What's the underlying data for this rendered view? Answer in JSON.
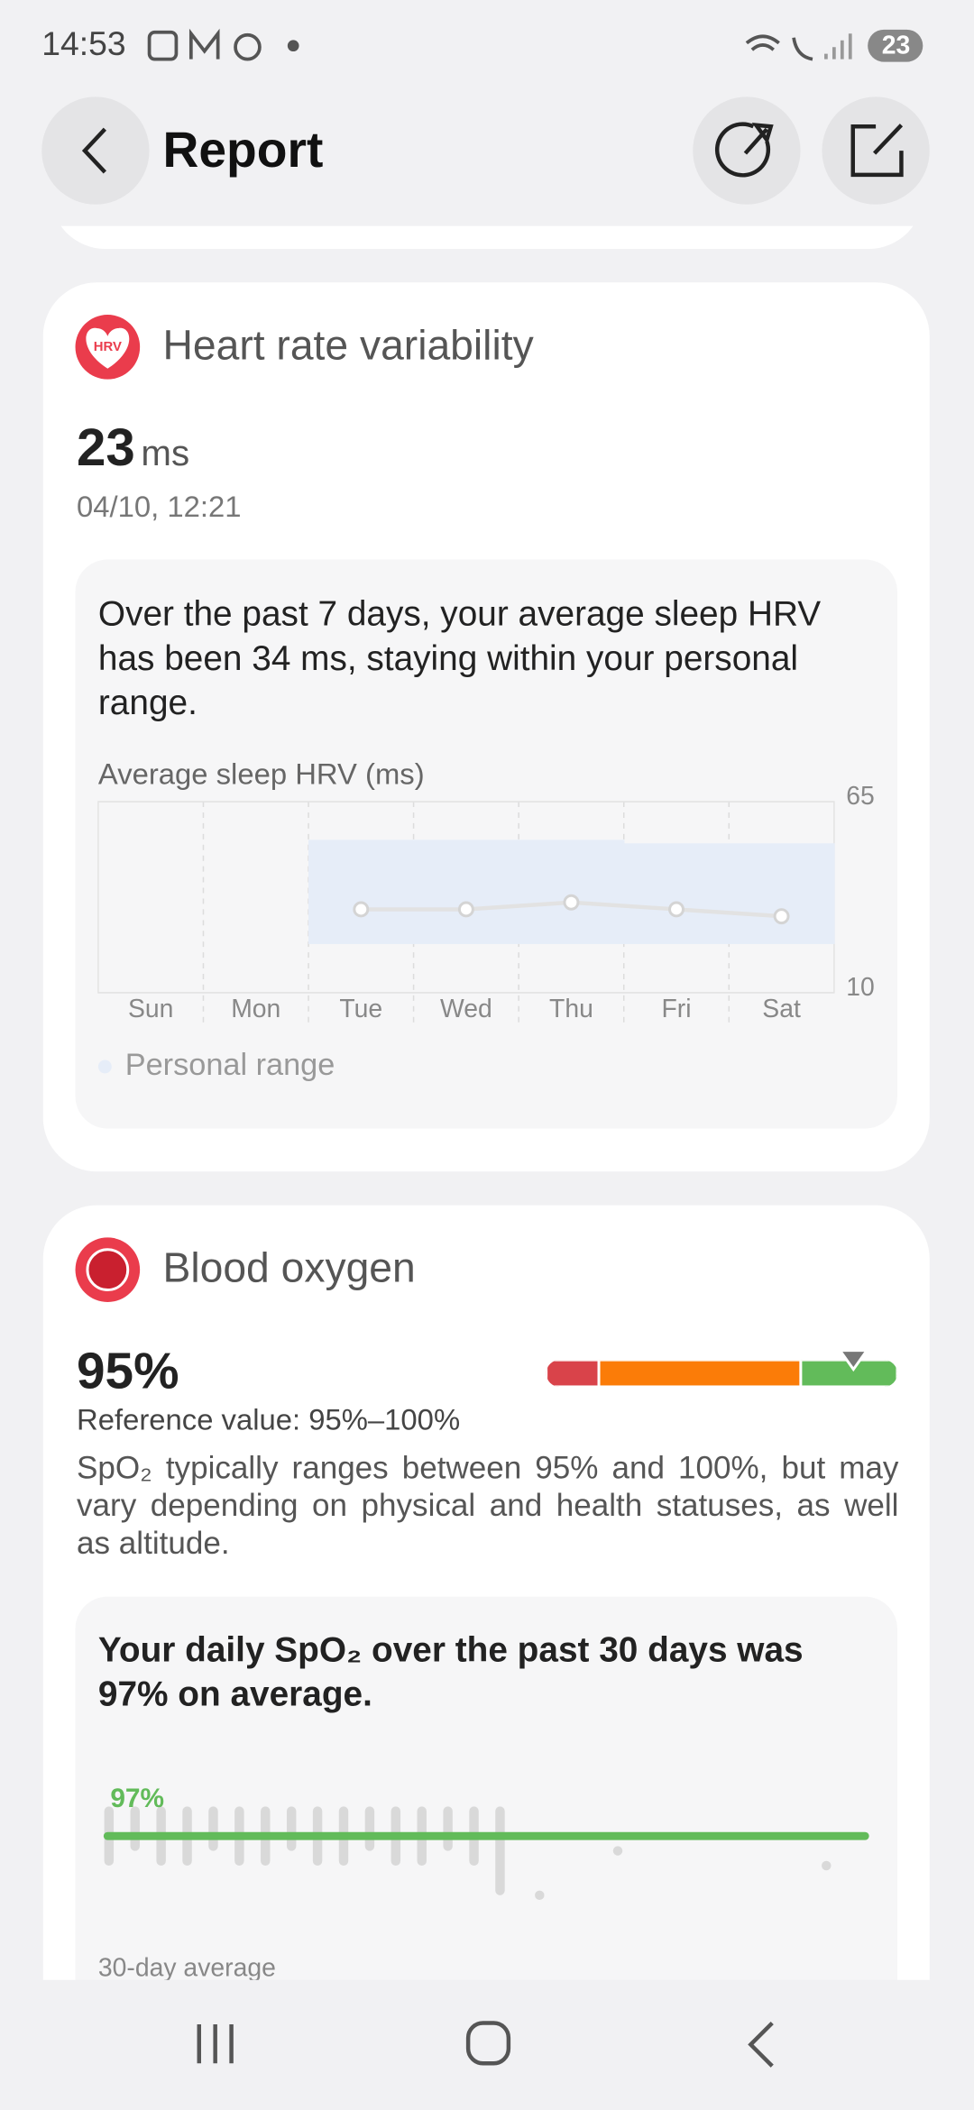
{
  "status_bar": {
    "time": "14:53",
    "battery": "23"
  },
  "header": {
    "title": "Report"
  },
  "hrv": {
    "title": "Heart rate variability",
    "icon_label": "HRV",
    "value": 23,
    "unit": "ms",
    "timestamp": "04/10, 12:21",
    "summary": "Over the past 7 days, your average sleep HRV has been 34 ms, staying within your personal range.",
    "chart": {
      "type": "line",
      "title": "Average sleep HRV (ms)",
      "categories": [
        "Sun",
        "Mon",
        "Tue",
        "Wed",
        "Thu",
        "Fri",
        "Sat"
      ],
      "values": [
        null,
        null,
        34,
        34,
        36,
        34,
        32
      ],
      "range_low": [
        null,
        null,
        24,
        24,
        24,
        24,
        24
      ],
      "range_high": [
        null,
        null,
        54,
        54,
        54,
        53,
        53
      ],
      "ylim": [
        10,
        65
      ],
      "yticks": [
        10,
        65
      ],
      "legend": "Personal range",
      "color": "#e2e2e2",
      "range_color": "#e6edf8"
    }
  },
  "blood_oxygen": {
    "title": "Blood oxygen",
    "value": 95,
    "value_label": "95%",
    "reference": "Reference value: 95%–100%",
    "description": "SpO₂ typically ranges between 95% and 100%, but may vary depending on physical and health statuses, as well as altitude.",
    "gauge": {
      "lim": [
        60,
        100
      ],
      "bounds": [
        66,
        89
      ],
      "colors": [
        "#d9434a",
        "#fb7c08",
        "#62bb5a"
      ]
    },
    "summary": "Your daily SpO₂ over the past 30 days was 97% on average.",
    "chart": {
      "type": "range_bar",
      "average": 97,
      "average_label": "97%",
      "ylim": [
        90,
        100
      ],
      "footer": "30-day average",
      "color": "#d9d9d9",
      "average_color": "#62bb5a",
      "lows": [
        95,
        96,
        95,
        95,
        96,
        95,
        95,
        96,
        95,
        95,
        96,
        95,
        95,
        96,
        95,
        93,
        93,
        null,
        null,
        96,
        null,
        null,
        null,
        null,
        null,
        null,
        null,
        95,
        null,
        null
      ],
      "highs": [
        99,
        99,
        99,
        99,
        99,
        99,
        99,
        99,
        99,
        99,
        99,
        99,
        99,
        99,
        99,
        99,
        93,
        null,
        null,
        96,
        null,
        null,
        null,
        null,
        null,
        null,
        null,
        95,
        null,
        null
      ]
    }
  }
}
